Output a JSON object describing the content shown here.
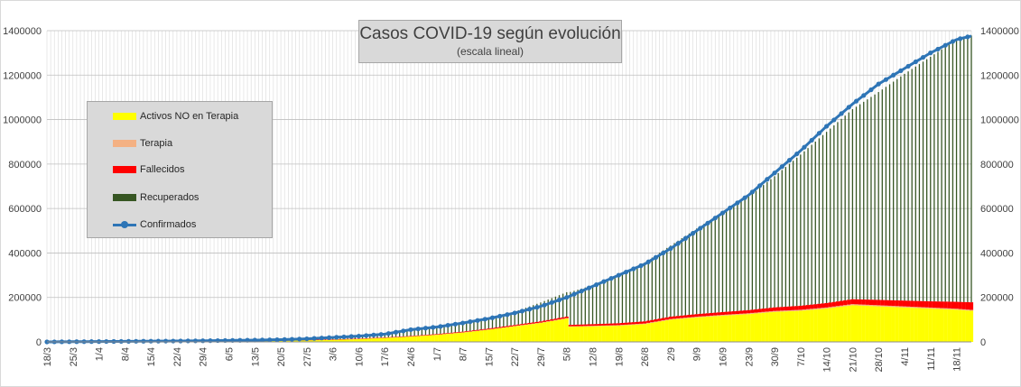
{
  "colors": {
    "activos": "#ffff00",
    "terapia": "#f4b183",
    "fallecidos": "#ff0000",
    "recuperados": "#375623",
    "confirmados": "#2e75b6",
    "grid": "#d9d9d9",
    "background": "#ffffff"
  },
  "chart_data": {
    "type": "area",
    "title": "Casos COVID-19 según evolución",
    "subtitle": "(escala lineal)",
    "xlabel": "",
    "ylabel": "",
    "ylim": [
      0,
      1400000
    ],
    "y_ticks": [
      "0",
      "200000",
      "400000",
      "600000",
      "800000",
      "1000000",
      "1200000",
      "1400000"
    ],
    "y_tick_values": [
      0,
      200000,
      400000,
      600000,
      800000,
      1000000,
      1200000,
      1400000
    ],
    "grid": true,
    "legend_position": "left",
    "x_ticks": [
      "18/3",
      "25/3",
      "1/4",
      "8/4",
      "15/4",
      "22/4",
      "29/4",
      "6/5",
      "13/5",
      "20/5",
      "27/5",
      "3/6",
      "10/6",
      "17/6",
      "24/6",
      "1/7",
      "8/7",
      "15/7",
      "22/7",
      "29/7",
      "5/8",
      "12/8",
      "19/8",
      "26/8",
      "2/9",
      "9/9",
      "16/9",
      "23/9",
      "30/9",
      "7/10",
      "14/10",
      "21/10",
      "28/10",
      "4/11",
      "11/11",
      "18/11"
    ],
    "tick_step_days": 7,
    "x_start": "18/3",
    "x_end": "22/11",
    "series": [
      {
        "name": "Activos NO en Terapia",
        "key": "activos",
        "kind": "area",
        "x": [
          "18/3",
          "25/3",
          "1/4",
          "8/4",
          "15/4",
          "22/4",
          "29/4",
          "6/5",
          "13/5",
          "20/5",
          "27/5",
          "3/6",
          "10/6",
          "17/6",
          "24/6",
          "1/7",
          "8/7",
          "15/7",
          "22/7",
          "29/7",
          "5/8",
          "6/8",
          "12/8",
          "19/8",
          "26/8",
          "2/9",
          "9/9",
          "16/9",
          "23/9",
          "30/9",
          "7/10",
          "14/10",
          "21/10",
          "28/10",
          "4/11",
          "11/11",
          "18/11",
          "22/11"
        ],
        "values": [
          0,
          0,
          0,
          0,
          0,
          0,
          3000,
          4000,
          5000,
          6000,
          8000,
          10000,
          13000,
          18000,
          24000,
          32000,
          42000,
          55000,
          70000,
          85000,
          105000,
          68000,
          70000,
          73000,
          80000,
          100000,
          110000,
          118000,
          125000,
          135000,
          140000,
          150000,
          165000,
          160000,
          155000,
          150000,
          145000,
          140000
        ]
      },
      {
        "name": "Terapia",
        "key": "terapia",
        "kind": "area",
        "x": [
          "18/3",
          "22/4",
          "29/4",
          "6/5",
          "13/5",
          "20/5",
          "27/5",
          "3/6",
          "10/6",
          "17/6",
          "24/6",
          "1/7",
          "8/7",
          "15/7",
          "22/7",
          "29/7",
          "5/8",
          "12/8",
          "19/8",
          "26/8",
          "2/9",
          "9/9",
          "16/9",
          "23/9",
          "30/9",
          "7/10",
          "14/10",
          "21/10",
          "28/10",
          "4/11",
          "11/11",
          "18/11",
          "22/11"
        ],
        "values": [
          0,
          0,
          0,
          0,
          0,
          100,
          200,
          300,
          400,
          500,
          600,
          800,
          1000,
          1200,
          1500,
          1800,
          2000,
          2200,
          2500,
          2800,
          3000,
          3300,
          3600,
          3900,
          4200,
          4500,
          4800,
          4900,
          4900,
          4700,
          4500,
          4300,
          4200
        ]
      },
      {
        "name": "Fallecidos",
        "key": "fallecidos",
        "kind": "area",
        "x": [
          "18/3",
          "22/4",
          "29/4",
          "6/5",
          "13/5",
          "20/5",
          "27/5",
          "3/6",
          "10/6",
          "17/6",
          "24/6",
          "1/7",
          "8/7",
          "15/7",
          "22/7",
          "29/7",
          "5/8",
          "12/8",
          "19/8",
          "26/8",
          "2/9",
          "9/9",
          "16/9",
          "23/9",
          "30/9",
          "7/10",
          "14/10",
          "21/10",
          "28/10",
          "4/11",
          "11/11",
          "18/11",
          "22/11"
        ],
        "values": [
          0,
          200,
          300,
          400,
          500,
          600,
          700,
          900,
          1300,
          1600,
          2000,
          2500,
          3000,
          3800,
          4500,
          5500,
          6500,
          7500,
          8500,
          9500,
          10500,
          11500,
          12500,
          14000,
          16000,
          18000,
          20000,
          22000,
          24000,
          26000,
          28000,
          31000,
          34000
        ]
      },
      {
        "name": "Recuperados",
        "key": "recuperados",
        "kind": "area",
        "x": [
          "18/3",
          "22/4",
          "29/4",
          "6/5",
          "13/5",
          "20/5",
          "27/5",
          "3/6",
          "10/6",
          "17/6",
          "24/6",
          "1/7",
          "8/7",
          "15/7",
          "22/7",
          "29/7",
          "5/8",
          "6/8",
          "12/8",
          "19/8",
          "26/8",
          "2/9",
          "9/9",
          "16/9",
          "23/9",
          "30/9",
          "7/10",
          "14/10",
          "21/10",
          "28/10",
          "4/11",
          "11/11",
          "18/11",
          "22/11"
        ],
        "values": [
          0,
          1000,
          1500,
          2000,
          3000,
          5000,
          7000,
          9000,
          11000,
          14000,
          22000,
          28000,
          36000,
          45000,
          60000,
          85000,
          110000,
          148000,
          175000,
          215000,
          265000,
          320000,
          385000,
          450000,
          510000,
          590000,
          680000,
          770000,
          855000,
          935000,
          1020000,
          1100000,
          1180000,
          1200000
        ]
      },
      {
        "name": "Confirmados",
        "key": "confirmados",
        "kind": "line",
        "x": [
          "18/3",
          "22/4",
          "29/4",
          "6/5",
          "13/5",
          "20/5",
          "27/5",
          "3/6",
          "10/6",
          "17/6",
          "24/6",
          "1/7",
          "8/7",
          "15/7",
          "22/7",
          "29/7",
          "5/8",
          "12/8",
          "19/8",
          "26/8",
          "2/9",
          "9/9",
          "16/9",
          "23/9",
          "30/9",
          "7/10",
          "14/10",
          "21/10",
          "28/10",
          "4/11",
          "11/11",
          "18/11",
          "22/11"
        ],
        "values": [
          0,
          4000,
          5000,
          6500,
          8000,
          10000,
          14000,
          20000,
          26000,
          35000,
          55000,
          67000,
          85000,
          105000,
          130000,
          160000,
          200000,
          250000,
          300000,
          350000,
          420000,
          500000,
          580000,
          660000,
          760000,
          860000,
          970000,
          1070000,
          1160000,
          1230000,
          1300000,
          1360000,
          1376000
        ]
      }
    ]
  }
}
